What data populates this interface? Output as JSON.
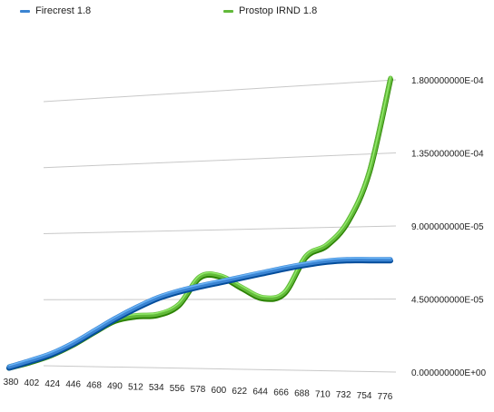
{
  "chart_data": {
    "type": "line",
    "title": "",
    "xlabel": "",
    "ylabel": "",
    "x": [
      380,
      402,
      424,
      446,
      468,
      490,
      512,
      534,
      556,
      578,
      600,
      622,
      644,
      666,
      688,
      710,
      732,
      754,
      776
    ],
    "ylim": [
      0,
      0.00018
    ],
    "y_ticks": [
      "0.000000000E+00",
      "4.500000000E-05",
      "9.000000000E-05",
      "1.350000000E-04",
      "1.800000000E-04"
    ],
    "legend_position": "top",
    "grid": true,
    "series": [
      {
        "name": "Firecrest 1.8",
        "color": "#3b84d2",
        "values": [
          0.0,
          4e-06,
          8.5e-06,
          1.5e-05,
          2.3e-05,
          3.1e-05,
          3.8e-05,
          4.4e-05,
          4.8e-05,
          5.1e-05,
          5.35e-05,
          5.6e-05,
          5.85e-05,
          6.1e-05,
          6.3e-05,
          6.45e-05,
          6.5e-05,
          6.45e-05,
          6.4e-05
        ]
      },
      {
        "name": "Prostop IRND 1.8",
        "color": "#62b93a",
        "values": [
          0.0,
          3.5e-06,
          8e-06,
          1.45e-05,
          2.25e-05,
          3e-05,
          3.25e-05,
          3.3e-05,
          3.9e-05,
          5.7e-05,
          5.7e-05,
          4.9e-05,
          4.2e-05,
          4.5e-05,
          6.8e-05,
          7.5e-05,
          9e-05,
          0.000121,
          0.00018
        ]
      }
    ]
  }
}
